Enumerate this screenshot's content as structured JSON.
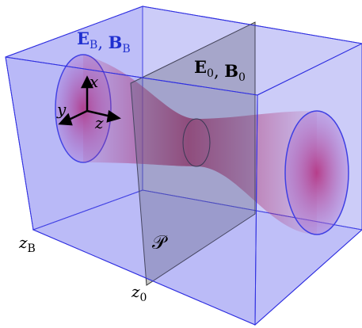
{
  "field_labels": [
    {
      "parts": [
        {
          "t": "E",
          "sub": "B"
        },
        {
          "t": "B",
          "sub": "B"
        }
      ],
      "sep": ", "
    },
    {
      "parts": [
        {
          "t": "E",
          "sub": "0"
        },
        {
          "t": "B",
          "sub": "0"
        }
      ],
      "sep": ", "
    }
  ],
  "axes": {
    "x": "x",
    "y": "y",
    "z": "z"
  },
  "positions": [
    {
      "t": "z",
      "sub": "B"
    },
    {
      "t": "z",
      "sub": "0"
    }
  ],
  "plane": "𝒫"
}
